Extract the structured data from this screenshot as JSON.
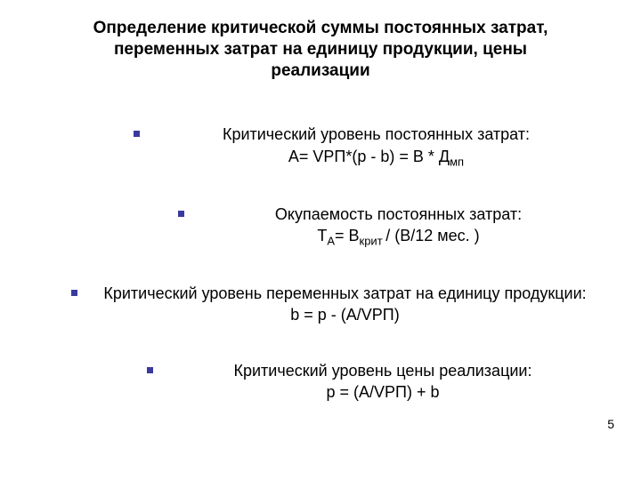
{
  "title": "Определение критической суммы постоянных затрат, переменных затрат на единицу продукции, цены реализации",
  "items": [
    {
      "text": "Критический уровень постоянных затрат:",
      "formula_pre": "А= VРП*(p - b) = В * Д",
      "formula_sub": "мп"
    },
    {
      "text": "Окупаемость постоянных затрат:",
      "formula_pre1": "Т",
      "formula_sub1": "А",
      "formula_mid": "= В",
      "formula_sub2": "крит ",
      "formula_post": "/ (В/12 мес. )"
    },
    {
      "text": "Критический уровень переменных затрат на единицу продукции:",
      "formula": "b = p -  (A/VРП)"
    },
    {
      "text": "Критический уровень цены реализации:",
      "formula": "p = (A/VРП) + b"
    }
  ],
  "page_number": "5",
  "colors": {
    "bullet": "#3a3a9e",
    "text": "#000000",
    "background": "#ffffff"
  }
}
